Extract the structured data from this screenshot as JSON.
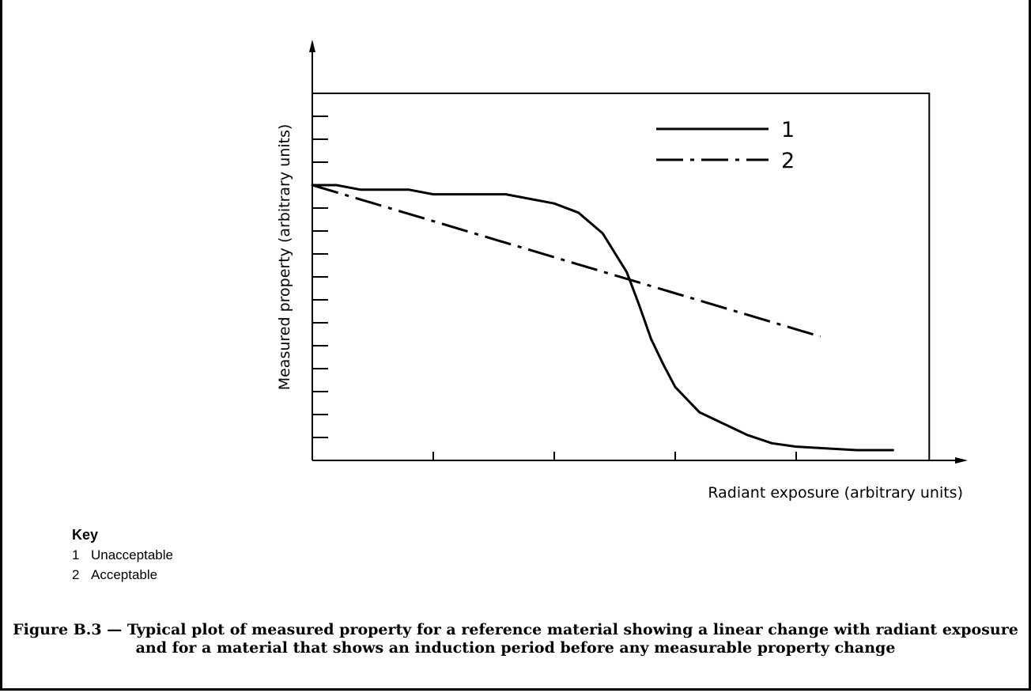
{
  "chart_data": {
    "type": "line",
    "title": "",
    "xlabel": "Radiant exposure (arbitrary units)",
    "ylabel": "Measured property (arbitrary units)",
    "xlim": [
      0,
      25.5
    ],
    "ylim": [
      0,
      16
    ],
    "x_ticks": [
      0,
      5,
      10,
      15,
      20
    ],
    "y_ticks": [
      0,
      1,
      2,
      3,
      4,
      5,
      6,
      7,
      8,
      9,
      10,
      11,
      12,
      13,
      14,
      15,
      16
    ],
    "grid": false,
    "legend_position": "top-right",
    "series": [
      {
        "name": "1",
        "style": "solid",
        "x": [
          0,
          1,
          2,
          4,
          5,
          8,
          10,
          11,
          12,
          13,
          13.5,
          14,
          14.5,
          15,
          16,
          17,
          18,
          19,
          20,
          22.5,
          24
        ],
        "y": [
          12,
          12,
          11.8,
          11.8,
          11.6,
          11.6,
          11.2,
          10.8,
          9.9,
          8.2,
          6.8,
          5.3,
          4.2,
          3.2,
          2.1,
          1.6,
          1.1,
          0.75,
          0.6,
          0.45,
          0.45
        ]
      },
      {
        "name": "2",
        "style": "dash-dot",
        "x": [
          0,
          21
        ],
        "y": [
          12,
          5.4
        ]
      }
    ]
  },
  "key": {
    "title": "Key",
    "items": [
      {
        "num": "1",
        "label": "Unacceptable"
      },
      {
        "num": "2",
        "label": "Acceptable"
      }
    ]
  },
  "caption": "Figure B.3 — Typical plot of measured property for a reference material showing a linear change with radiant exposure and for a material that shows an induction period before any measurable property change"
}
